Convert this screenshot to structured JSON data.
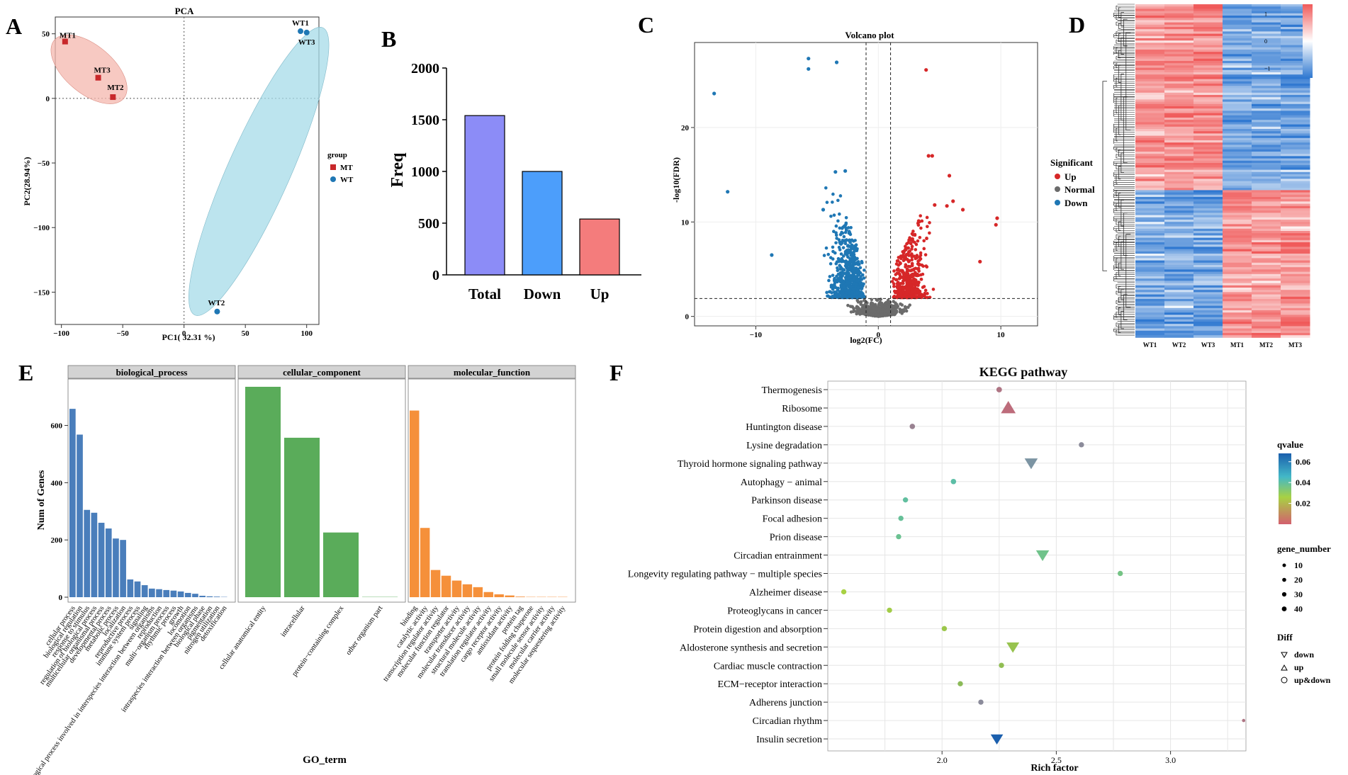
{
  "figure": {
    "panel_letters": [
      "A",
      "B",
      "C",
      "D",
      "E",
      "F"
    ]
  },
  "chart_data": [
    {
      "panel": "A",
      "type": "scatter",
      "title": "PCA",
      "xlabel": "PC1( 32.31 %)",
      "ylabel": "PC2(28.94%)",
      "xlim": [
        -105,
        110
      ],
      "ylim": [
        -175,
        63
      ],
      "xticks": [
        -100,
        -50,
        0,
        50,
        100
      ],
      "xtick_labels": [
        "−100",
        "−50",
        "0",
        "50",
        "100"
      ],
      "yticks": [
        50,
        0,
        -50,
        -100,
        -150
      ],
      "ytick_labels": [
        "50",
        "0",
        "−50",
        "−100",
        "−150"
      ],
      "legend_title": "group",
      "colors": {
        "MT": "#c8282b",
        "WT": "#1f77b4",
        "MT_ellipse": "#f4b7ae",
        "WT_ellipse": "#a6dbe8"
      },
      "groups": [
        {
          "name": "MT",
          "points": [
            {
              "label": "MT1",
              "x": -97,
              "y": 44
            },
            {
              "label": "MT3",
              "x": -70,
              "y": 16
            },
            {
              "label": "MT2",
              "x": -58,
              "y": 1
            }
          ]
        },
        {
          "name": "WT",
          "points": [
            {
              "label": "WT1",
              "x": 95,
              "y": 52
            },
            {
              "label": "WT3",
              "x": 100,
              "y": 51
            },
            {
              "label": "WT2",
              "x": 27,
              "y": -165
            }
          ]
        }
      ]
    },
    {
      "panel": "B",
      "type": "bar",
      "categories": [
        "Total",
        "Down",
        "Up"
      ],
      "values": [
        1540,
        1000,
        540
      ],
      "colors": [
        "#8c8cf7",
        "#4c9efb",
        "#f47c7c"
      ],
      "ylabel": "Freq",
      "ylim": [
        0,
        2000
      ],
      "yticks": [
        0,
        500,
        1000,
        1500,
        2000
      ]
    },
    {
      "panel": "C",
      "type": "scatter",
      "title": "Volcano plot",
      "xlabel": "log2(FC)",
      "ylabel": "-log10(FDR)",
      "xlim": [
        -15,
        13
      ],
      "ylim": [
        -1,
        29
      ],
      "xticks": [
        -10,
        0,
        10
      ],
      "xtick_labels": [
        "−10",
        "0",
        "10"
      ],
      "yticks": [
        0,
        10,
        20
      ],
      "thresholds": {
        "log2fc": [
          -1,
          1
        ],
        "fdr_line": 1.9
      },
      "legend_title": "Significant",
      "legend": [
        {
          "name": "Up",
          "color": "#d62728"
        },
        {
          "name": "Normal",
          "color": "#6b6b6b"
        },
        {
          "name": "Down",
          "color": "#1f77b4"
        }
      ],
      "highlight_points": {
        "down": [
          [
            -5.7,
            27.3
          ],
          [
            -5.7,
            26.2
          ],
          [
            -3.4,
            26.9
          ],
          [
            -13.4,
            23.6
          ],
          [
            -12.3,
            13.2
          ],
          [
            -3.5,
            15.3
          ],
          [
            -2.7,
            15.4
          ],
          [
            -8.7,
            6.5
          ],
          [
            -4.5,
            11.3
          ]
        ],
        "up": [
          [
            3.9,
            26.1
          ],
          [
            4.1,
            17.0
          ],
          [
            4.4,
            17.0
          ],
          [
            5.8,
            14.9
          ],
          [
            5.6,
            11.7
          ],
          [
            6.1,
            12.2
          ],
          [
            6.9,
            11.3
          ],
          [
            9.7,
            10.4
          ],
          [
            9.6,
            9.7
          ],
          [
            8.3,
            5.8
          ],
          [
            4.6,
            11.8
          ],
          [
            3.3,
            10.1
          ]
        ]
      }
    },
    {
      "panel": "D",
      "type": "heatmap",
      "columns": [
        "WT1",
        "WT2",
        "WT3",
        "MT1",
        "MT2",
        "MT3"
      ],
      "split_fraction": 0.552,
      "pattern": {
        "upper_block": [
          1,
          1,
          1,
          -1,
          -1,
          -1
        ],
        "lower_block": [
          -1,
          -1,
          -1,
          1,
          1,
          1
        ]
      },
      "legend_ticks": [
        1,
        0,
        -1
      ],
      "legend_labels": [
        "1",
        "0",
        "−1"
      ],
      "colors": {
        "high": "#f05a5a",
        "mid": "#ffffff",
        "low": "#2f78d1"
      }
    },
    {
      "panel": "E",
      "type": "bar",
      "xlabel": "GO_term",
      "ylabel": "Num of Genes",
      "ylim": [
        0,
        735
      ],
      "yticks": [
        0,
        200,
        400,
        600
      ],
      "facets": [
        {
          "name": "biological_process",
          "color": "#4a7ebb",
          "terms": [
            "cellular process",
            "biological regulation",
            "response to stimulus",
            "regulation of biological process",
            "multicellular organismal process",
            "developmental process",
            "metabolic process",
            "localization",
            "reproductive process",
            "immune system process",
            "signaling",
            "biological process involved in interspecies interaction between organisms",
            "reproduction",
            "multi−organism process",
            "rhythmic process",
            "growth",
            "locomotion",
            "intraspecies interaction between organisms",
            "biological phase",
            "pigmentation",
            "nitrogen utilization",
            "detoxification"
          ],
          "values": [
            658,
            568,
            305,
            295,
            260,
            240,
            205,
            200,
            62,
            55,
            42,
            30,
            28,
            25,
            23,
            20,
            15,
            12,
            5,
            3,
            2,
            1
          ]
        },
        {
          "name": "cellular_component",
          "color": "#5aac5a",
          "terms": [
            "cellular anatomical entity",
            "intracellular",
            "protein−containing complex",
            "other organism part"
          ],
          "values": [
            735,
            557,
            226,
            1
          ]
        },
        {
          "name": "molecular_function",
          "color": "#f5903a",
          "terms": [
            "binding",
            "catalytic activity",
            "transcription regulator activity",
            "molecular function regulator",
            "transporter activity",
            "molecular transducer activity",
            "structural molecule activity",
            "translation regulator activity",
            "cargo receptor activity",
            "antioxidant activity",
            "protein tag",
            "protein folding chaperone",
            "small molecule sensor activity",
            "molecular carrier activity",
            "molecular sequestering activity"
          ],
          "values": [
            652,
            242,
            95,
            75,
            58,
            45,
            35,
            18,
            10,
            6,
            2,
            1,
            1,
            1,
            1
          ]
        }
      ]
    },
    {
      "panel": "F",
      "type": "scatter",
      "title": "KEGG pathway",
      "xlabel": "Rich factor",
      "xlim": [
        1.5,
        3.33
      ],
      "xticks": [
        2.0,
        2.5,
        3.0
      ],
      "xtick_labels": [
        "2.0",
        "2.5",
        "3.0"
      ],
      "legend": {
        "qvalue_title": "qvalue",
        "qvalue_ticks": [
          0.06,
          0.04,
          0.02
        ],
        "qvalue_labels": [
          "0.06",
          "0.04",
          "0.02"
        ],
        "gene_number_title": "gene_number",
        "gene_number_ticks": [
          10,
          20,
          30,
          40
        ],
        "diff_title": "Diff",
        "diff_entries": [
          "down",
          "up",
          "up&down"
        ]
      },
      "pathways": [
        {
          "name": "Thermogenesis",
          "rich": 2.25,
          "qvalue": 0.005,
          "diff": "up&down",
          "genes": 12
        },
        {
          "name": "Ribosome",
          "rich": 2.29,
          "qvalue": 0.003,
          "diff": "up",
          "genes": 40
        },
        {
          "name": "Huntington disease",
          "rich": 1.87,
          "qvalue": 0.008,
          "diff": "up&down",
          "genes": 11
        },
        {
          "name": "Lysine degradation",
          "rich": 2.61,
          "qvalue": 0.01,
          "diff": "up&down",
          "genes": 10
        },
        {
          "name": "Thyroid hormone signaling pathway",
          "rich": 2.39,
          "qvalue": 0.012,
          "diff": "down",
          "genes": 30
        },
        {
          "name": "Autophagy − animal",
          "rich": 2.05,
          "qvalue": 0.025,
          "diff": "up&down",
          "genes": 11
        },
        {
          "name": "Parkinson disease",
          "rich": 1.84,
          "qvalue": 0.026,
          "diff": "up&down",
          "genes": 10
        },
        {
          "name": "Focal adhesion",
          "rich": 1.82,
          "qvalue": 0.027,
          "diff": "up&down",
          "genes": 10
        },
        {
          "name": "Prion disease",
          "rich": 1.81,
          "qvalue": 0.028,
          "diff": "up&down",
          "genes": 10
        },
        {
          "name": "Circadian entrainment",
          "rich": 2.44,
          "qvalue": 0.029,
          "diff": "down",
          "genes": 30
        },
        {
          "name": "Longevity regulating pathway − multiple species",
          "rich": 2.78,
          "qvalue": 0.03,
          "diff": "up&down",
          "genes": 10
        },
        {
          "name": "Alzheimer disease",
          "rich": 1.57,
          "qvalue": 0.04,
          "diff": "up&down",
          "genes": 10
        },
        {
          "name": "Proteoglycans in cancer",
          "rich": 1.77,
          "qvalue": 0.041,
          "diff": "up&down",
          "genes": 10
        },
        {
          "name": "Protein digestion and absorption",
          "rich": 2.01,
          "qvalue": 0.042,
          "diff": "up&down",
          "genes": 10
        },
        {
          "name": "Aldosterone synthesis and secretion",
          "rich": 2.31,
          "qvalue": 0.043,
          "diff": "down",
          "genes": 28
        },
        {
          "name": "Cardiac muscle contraction",
          "rich": 2.26,
          "qvalue": 0.044,
          "diff": "up&down",
          "genes": 10
        },
        {
          "name": "ECM−receptor interaction",
          "rich": 2.08,
          "qvalue": 0.045,
          "diff": "up&down",
          "genes": 10
        },
        {
          "name": "Adherens junction",
          "rich": 2.17,
          "qvalue": 0.01,
          "diff": "up&down",
          "genes": 10
        },
        {
          "name": "Circadian rhythm",
          "rich": 3.32,
          "qvalue": 0.005,
          "diff": "up&down",
          "genes": 2
        },
        {
          "name": "Insulin secretion",
          "rich": 2.24,
          "qvalue": 0.065,
          "diff": "down",
          "genes": 26
        }
      ]
    }
  ]
}
